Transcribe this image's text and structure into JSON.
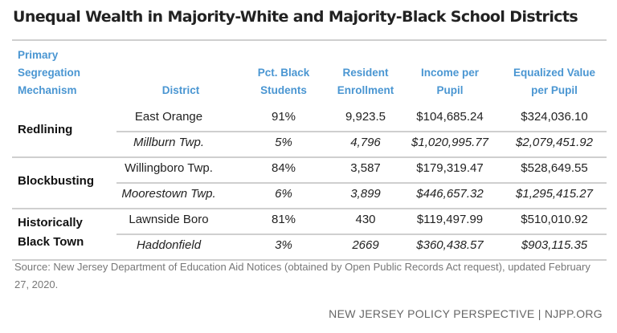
{
  "chart_data": {
    "type": "table",
    "title": "Unequal Wealth in Majority-White and Majority-Black School Districts",
    "columns": [
      "Primary Segregation Mechanism",
      "District",
      "Pct. Black Students",
      "Resident Enrollment",
      "Income per Pupil",
      "Equalized Value per Pupil"
    ],
    "groups": [
      {
        "mechanism": "Redlining",
        "rows": [
          {
            "district": "East Orange",
            "pct": "91%",
            "enrollment": "9,923.5",
            "income": "$104,685.24",
            "equalized": "$324,036.10",
            "italic": false
          },
          {
            "district": "Millburn Twp.",
            "pct": "5%",
            "enrollment": "4,796",
            "income": "$1,020,995.77",
            "equalized": "$2,079,451.92",
            "italic": true
          }
        ]
      },
      {
        "mechanism": "Blockbusting",
        "rows": [
          {
            "district": "Willingboro Twp.",
            "pct": "84%",
            "enrollment": "3,587",
            "income": "$179,319.47",
            "equalized": "$528,649.55",
            "italic": false
          },
          {
            "district": "Moorestown Twp.",
            "pct": "6%",
            "enrollment": "3,899",
            "income": "$446,657.32",
            "equalized": "$1,295,415.27",
            "italic": true
          }
        ]
      },
      {
        "mechanism": "Historically Black Town",
        "rows": [
          {
            "district": "Lawnside Boro",
            "pct": "81%",
            "enrollment": "430",
            "income": "$119,497.99",
            "equalized": "$510,010.92",
            "italic": false
          },
          {
            "district": "Haddonfield",
            "pct": "3%",
            "enrollment": "2669",
            "income": "$360,438.57",
            "equalized": "$903,115.35",
            "italic": true
          }
        ]
      }
    ],
    "header_color": "#4a96d2"
  },
  "headers": {
    "mechanism": [
      "Primary",
      "Segregation",
      "Mechanism"
    ],
    "district": "District",
    "pct": [
      "Pct. Black",
      "Students"
    ],
    "enrollment": [
      "Resident",
      "Enrollment"
    ],
    "income": [
      "Income per",
      "Pupil"
    ],
    "equalized": [
      "Equalized Value",
      "per Pupil"
    ]
  },
  "mech_lines": [
    [
      "Redlining"
    ],
    [
      "Blockbusting"
    ],
    [
      "Historically",
      "Black Town"
    ]
  ],
  "source": "Source:  New Jersey Department of Education Aid Notices (obtained by Open Public Records Act request), updated February 27, 2020.",
  "footer": "NEW JERSEY POLICY PERSPECTIVE | NJPP.ORG"
}
